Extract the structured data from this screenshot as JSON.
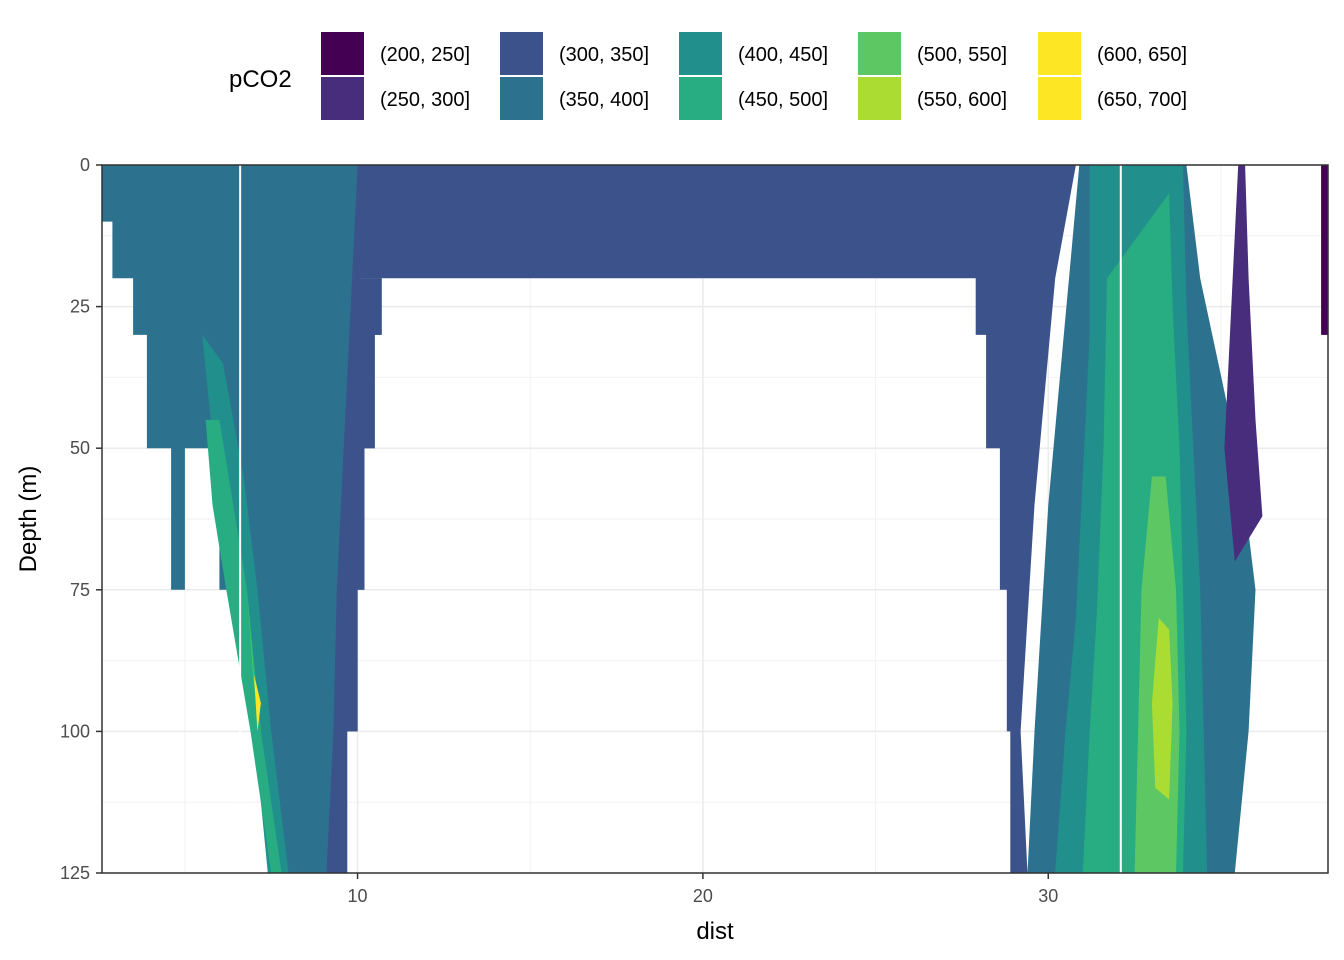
{
  "chart_data": {
    "type": "contour",
    "xlabel": "dist",
    "ylabel": "Depth (m)",
    "xlim": [
      2.6,
      38.1
    ],
    "ylim": [
      0,
      125
    ],
    "y_reversed": true,
    "x_ticks": [
      10,
      20,
      30
    ],
    "y_ticks": [
      0,
      25,
      50,
      75,
      100,
      125
    ],
    "grid": true,
    "legend": {
      "title": "pCO2",
      "position": "top",
      "entries": [
        {
          "label": "(200, 250]",
          "color": "#440154"
        },
        {
          "label": "(250, 300]",
          "color": "#472D7B"
        },
        {
          "label": "(300, 350]",
          "color": "#3B528B"
        },
        {
          "label": "(350, 400]",
          "color": "#2C728E"
        },
        {
          "label": "(400, 450]",
          "color": "#21908C"
        },
        {
          "label": "(450, 500]",
          "color": "#27AD81"
        },
        {
          "label": "(500, 550]",
          "color": "#5DC863"
        },
        {
          "label": "(550, 600]",
          "color": "#AADC32"
        },
        {
          "label": "(600, 650]",
          "color": "#FDE725"
        },
        {
          "label": "(650, 700]",
          "color": "#FDE725"
        }
      ]
    },
    "station_lines_x": [
      6.6,
      32.1
    ],
    "regions": [
      {
        "level": "(350, 400]",
        "points": [
          [
            2.6,
            0
          ],
          [
            2.6,
            10
          ],
          [
            2.9,
            10
          ],
          [
            2.9,
            20
          ],
          [
            3.5,
            20
          ],
          [
            3.5,
            30
          ],
          [
            3.9,
            30
          ],
          [
            3.9,
            50
          ],
          [
            4.6,
            50
          ],
          [
            4.6,
            75
          ],
          [
            5.0,
            75
          ],
          [
            5.0,
            50
          ],
          [
            6.0,
            50
          ],
          [
            6.0,
            75
          ],
          [
            7.1,
            75
          ],
          [
            7.1,
            100
          ],
          [
            7.4,
            100
          ],
          [
            7.4,
            125
          ],
          [
            9.7,
            125
          ],
          [
            9.7,
            100
          ],
          [
            10.0,
            100
          ],
          [
            10.0,
            75
          ],
          [
            10.2,
            75
          ],
          [
            10.2,
            50
          ],
          [
            10.5,
            50
          ],
          [
            10.5,
            30
          ],
          [
            10.7,
            30
          ],
          [
            10.7,
            20
          ],
          [
            10.1,
            20
          ],
          [
            10.1,
            0
          ]
        ]
      },
      {
        "level": "(300, 350]",
        "points": [
          [
            10.1,
            0
          ],
          [
            10.1,
            20
          ],
          [
            10.7,
            20
          ],
          [
            10.7,
            30
          ],
          [
            10.5,
            30
          ],
          [
            10.5,
            50
          ],
          [
            10.2,
            50
          ],
          [
            10.2,
            75
          ],
          [
            10.0,
            75
          ],
          [
            10.0,
            100
          ],
          [
            9.7,
            100
          ],
          [
            9.7,
            125
          ],
          [
            9.1,
            125
          ],
          [
            9.3,
            100
          ],
          [
            9.4,
            75
          ],
          [
            9.6,
            50
          ],
          [
            9.8,
            25
          ],
          [
            10.0,
            0
          ]
        ]
      },
      {
        "level": "(300, 350]",
        "points": [
          [
            10.1,
            0
          ],
          [
            10.1,
            20
          ],
          [
            27.9,
            20
          ],
          [
            27.9,
            30
          ],
          [
            28.2,
            30
          ],
          [
            28.2,
            50
          ],
          [
            28.6,
            50
          ],
          [
            28.6,
            75
          ],
          [
            28.8,
            75
          ],
          [
            28.8,
            100
          ],
          [
            28.9,
            100
          ],
          [
            28.9,
            125
          ],
          [
            29.4,
            125
          ],
          [
            29.2,
            100
          ],
          [
            29.4,
            80
          ],
          [
            29.6,
            60
          ],
          [
            29.9,
            40
          ],
          [
            30.2,
            20
          ],
          [
            30.8,
            0
          ]
        ]
      },
      {
        "level": "(400, 450]",
        "points": [
          [
            5.5,
            30
          ],
          [
            6.0,
            60
          ],
          [
            6.5,
            75
          ],
          [
            7.0,
            100
          ],
          [
            7.4,
            125
          ],
          [
            8.0,
            125
          ],
          [
            7.5,
            100
          ],
          [
            7.1,
            75
          ],
          [
            6.7,
            55
          ],
          [
            6.1,
            35
          ]
        ]
      },
      {
        "level": "(450, 500]",
        "points": [
          [
            5.6,
            45
          ],
          [
            5.8,
            60
          ],
          [
            6.2,
            75
          ],
          [
            6.9,
            100
          ],
          [
            7.5,
            125
          ],
          [
            7.8,
            125
          ],
          [
            7.2,
            100
          ],
          [
            6.8,
            75
          ],
          [
            6.4,
            60
          ],
          [
            6.0,
            45
          ]
        ]
      },
      {
        "level": "(500, 550]",
        "points": [
          [
            6.8,
            75
          ],
          [
            7.0,
            90
          ],
          [
            7.2,
            100
          ],
          [
            7.0,
            92
          ]
        ]
      },
      {
        "level": "(600, 650]",
        "points": [
          [
            7.0,
            90
          ],
          [
            7.1,
            100
          ],
          [
            7.2,
            95
          ]
        ]
      },
      {
        "level": "(350, 400]",
        "points": [
          [
            30.9,
            0
          ],
          [
            30.6,
            20
          ],
          [
            30.3,
            40
          ],
          [
            30.0,
            60
          ],
          [
            29.8,
            80
          ],
          [
            29.6,
            100
          ],
          [
            29.4,
            125
          ],
          [
            35.4,
            125
          ],
          [
            35.8,
            100
          ],
          [
            36.0,
            75
          ],
          [
            35.6,
            55
          ],
          [
            35.1,
            40
          ],
          [
            34.4,
            20
          ],
          [
            34.0,
            0
          ]
        ]
      },
      {
        "level": "(400, 450]",
        "points": [
          [
            31.2,
            0
          ],
          [
            31.2,
            30
          ],
          [
            31.0,
            55
          ],
          [
            30.8,
            80
          ],
          [
            30.5,
            100
          ],
          [
            30.2,
            125
          ],
          [
            34.6,
            125
          ],
          [
            34.5,
            100
          ],
          [
            34.4,
            75
          ],
          [
            34.2,
            50
          ],
          [
            34.0,
            25
          ],
          [
            33.9,
            0
          ]
        ]
      },
      {
        "level": "(450, 500]",
        "points": [
          [
            31.7,
            20
          ],
          [
            31.6,
            50
          ],
          [
            31.4,
            80
          ],
          [
            31.2,
            100
          ],
          [
            31.0,
            125
          ],
          [
            33.9,
            125
          ],
          [
            34.0,
            100
          ],
          [
            33.9,
            75
          ],
          [
            33.8,
            50
          ],
          [
            33.6,
            25
          ],
          [
            33.5,
            5
          ]
        ]
      },
      {
        "level": "(500, 550]",
        "points": [
          [
            33.0,
            55
          ],
          [
            32.7,
            75
          ],
          [
            32.6,
            100
          ],
          [
            32.5,
            125
          ],
          [
            33.7,
            125
          ],
          [
            33.8,
            100
          ],
          [
            33.7,
            75
          ],
          [
            33.4,
            55
          ]
        ]
      },
      {
        "level": "(550, 600]",
        "points": [
          [
            33.2,
            80
          ],
          [
            33.0,
            95
          ],
          [
            33.1,
            110
          ],
          [
            33.5,
            112
          ],
          [
            33.6,
            95
          ],
          [
            33.5,
            82
          ]
        ]
      },
      {
        "level": "(250, 300]",
        "points": [
          [
            35.5,
            0
          ],
          [
            35.3,
            25
          ],
          [
            35.1,
            50
          ],
          [
            35.4,
            70
          ],
          [
            36.2,
            62
          ],
          [
            36.0,
            45
          ],
          [
            35.8,
            20
          ],
          [
            35.7,
            0
          ]
        ]
      },
      {
        "level": "(200, 250]",
        "points": [
          [
            37.9,
            0
          ],
          [
            37.9,
            30
          ],
          [
            38.1,
            30
          ],
          [
            38.1,
            0
          ]
        ]
      }
    ]
  }
}
